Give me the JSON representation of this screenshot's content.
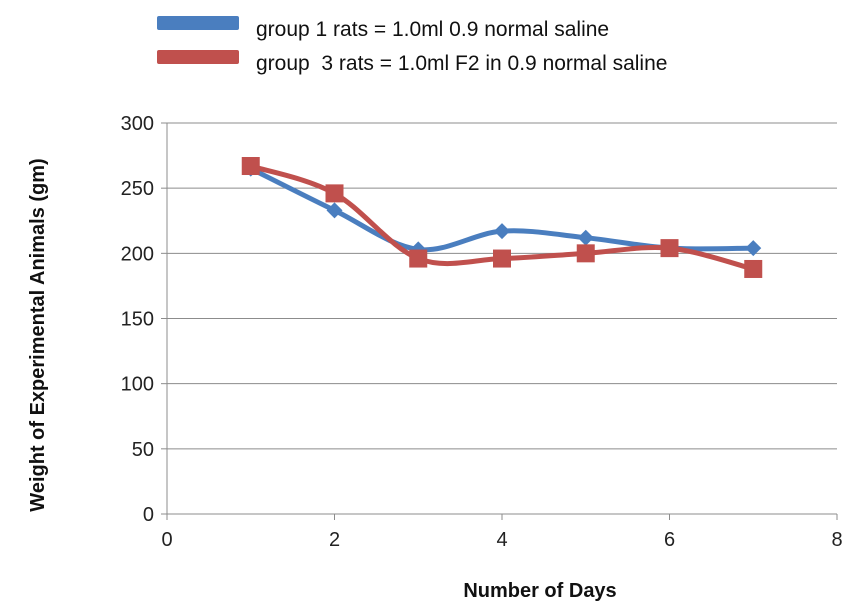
{
  "chart_data": {
    "type": "line",
    "title": "",
    "xlabel": "Number of Days",
    "ylabel": "Weight of Experimental Animals (gm)",
    "xlim": [
      0,
      8
    ],
    "ylim": [
      0,
      300
    ],
    "xticks": [
      0,
      2,
      4,
      6,
      8
    ],
    "yticks": [
      0,
      50,
      100,
      150,
      200,
      250,
      300
    ],
    "grid": "horizontal",
    "legend_position": "top",
    "smoothed": true,
    "series": [
      {
        "name": "group 1 rats = 1.0ml 0.9 normal saline",
        "color": "#4a7ebf",
        "marker": "diamond",
        "x": [
          1,
          2,
          3,
          4,
          5,
          6,
          7
        ],
        "values": [
          265,
          233,
          203,
          217,
          212,
          204,
          204
        ]
      },
      {
        "name": "group  3 rats = 1.0ml F2 in 0.9 normal saline",
        "color": "#c0504d",
        "marker": "square",
        "x": [
          1,
          2,
          3,
          4,
          5,
          6,
          7
        ],
        "values": [
          267,
          246,
          196,
          196,
          200,
          204,
          188
        ]
      }
    ]
  }
}
